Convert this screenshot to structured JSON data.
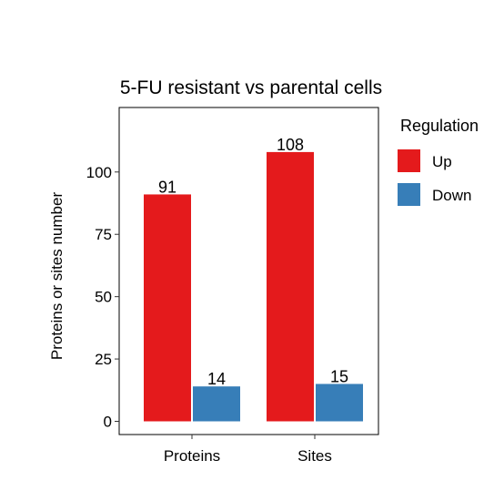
{
  "chart_data": {
    "type": "bar",
    "title": "5-FU resistant vs parental cells",
    "xlabel": "",
    "ylabel": "Proteins or sites number",
    "categories": [
      "Proteins",
      "Sites"
    ],
    "series": [
      {
        "name": "Up",
        "values": [
          91,
          108
        ],
        "color": "#E41A1C"
      },
      {
        "name": "Down",
        "values": [
          14,
          15
        ],
        "color": "#377EB8"
      }
    ],
    "ylim": [
      0,
      120
    ],
    "yticks": [
      0,
      25,
      50,
      75,
      100
    ],
    "legend": {
      "title": "Regulation",
      "position": "right"
    },
    "grid": false
  }
}
